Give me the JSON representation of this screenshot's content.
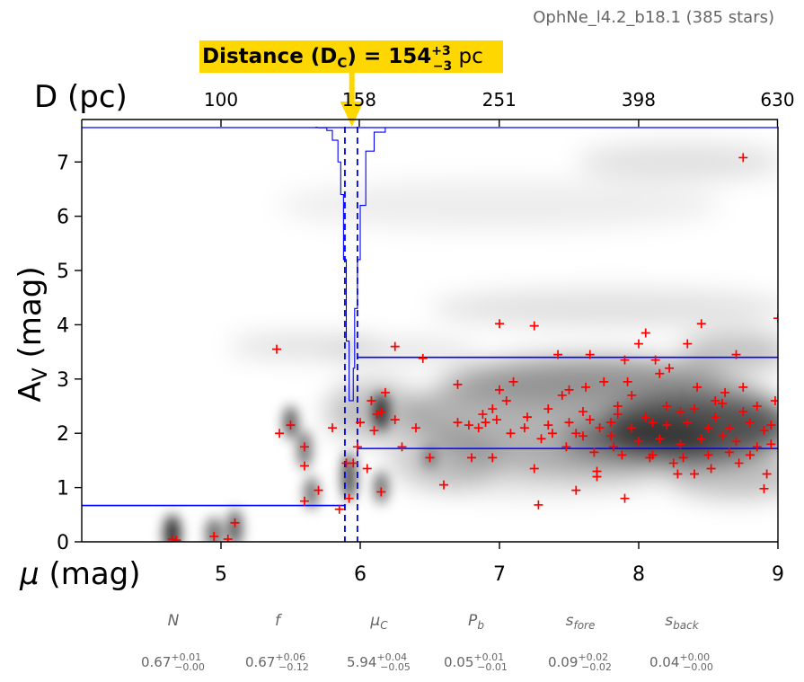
{
  "header": {
    "title": "OphNe_l4.2_b18.1 (385 stars)"
  },
  "distance_banner": {
    "label": "Distance (D",
    "sub": "C",
    "mid": ") = 154",
    "sup": "+3",
    "inf": "−3",
    "unit": " pc",
    "bg_color": "#FFD700"
  },
  "colors": {
    "points": "#ff0000",
    "lines": "#0000ff",
    "arrow": "#FFD700",
    "density": "#000000"
  },
  "chart_data": {
    "type": "scatter",
    "xlabel_main": "μ",
    "xlabel_unit": " (mag)",
    "ylabel_main": "A",
    "ylabel_sub": "V",
    "ylabel_unit": " (mag)",
    "top_axis_label": "D (pc)",
    "xlim": [
      4,
      9
    ],
    "ylim": [
      0,
      7.65
    ],
    "x_ticks": [
      "5",
      "6",
      "7",
      "8",
      "9"
    ],
    "y_ticks": [
      "0",
      "1",
      "2",
      "3",
      "4",
      "5",
      "6",
      "7"
    ],
    "top_ticks": [
      "100",
      "158",
      "251",
      "398",
      "630"
    ],
    "mu_c": 5.94,
    "mu_c_err": [
      5.89,
      5.98
    ],
    "foreground_av": 0.67,
    "background_band": [
      1.72,
      3.4
    ],
    "points": [
      [
        4.65,
        0.05
      ],
      [
        4.68,
        0.03
      ],
      [
        4.95,
        0.1
      ],
      [
        5.1,
        0.35
      ],
      [
        5.05,
        0.05
      ],
      [
        5.4,
        3.55
      ],
      [
        5.42,
        2.0
      ],
      [
        5.5,
        2.15
      ],
      [
        5.6,
        1.75
      ],
      [
        5.6,
        1.4
      ],
      [
        5.6,
        0.75
      ],
      [
        5.7,
        0.95
      ],
      [
        5.85,
        0.6
      ],
      [
        5.9,
        1.45
      ],
      [
        5.92,
        0.8
      ],
      [
        5.95,
        1.45
      ],
      [
        5.8,
        2.1
      ],
      [
        5.98,
        1.75
      ],
      [
        6.0,
        2.2
      ],
      [
        6.08,
        2.6
      ],
      [
        6.1,
        2.05
      ],
      [
        6.12,
        2.35
      ],
      [
        6.15,
        2.4
      ],
      [
        6.18,
        2.75
      ],
      [
        6.05,
        1.35
      ],
      [
        6.15,
        0.92
      ],
      [
        6.25,
        2.25
      ],
      [
        6.3,
        1.75
      ],
      [
        6.25,
        3.6
      ],
      [
        6.4,
        2.1
      ],
      [
        6.45,
        3.38
      ],
      [
        6.5,
        1.55
      ],
      [
        6.6,
        1.05
      ],
      [
        6.7,
        2.9
      ],
      [
        6.7,
        2.2
      ],
      [
        6.8,
        1.55
      ],
      [
        6.85,
        2.1
      ],
      [
        6.9,
        2.2
      ],
      [
        6.95,
        1.55
      ],
      [
        6.95,
        2.45
      ],
      [
        7.0,
        2.8
      ],
      [
        7.0,
        4.02
      ],
      [
        7.05,
        2.6
      ],
      [
        7.1,
        2.95
      ],
      [
        7.2,
        2.3
      ],
      [
        7.25,
        1.35
      ],
      [
        7.3,
        1.9
      ],
      [
        7.35,
        2.15
      ],
      [
        7.45,
        2.7
      ],
      [
        7.5,
        2.8
      ],
      [
        7.55,
        0.95
      ],
      [
        7.6,
        1.95
      ],
      [
        7.6,
        2.4
      ],
      [
        7.65,
        3.45
      ],
      [
        7.7,
        1.3
      ],
      [
        7.7,
        1.2
      ],
      [
        7.75,
        2.95
      ],
      [
        7.8,
        2.2
      ],
      [
        7.85,
        2.5
      ],
      [
        7.9,
        0.8
      ],
      [
        7.9,
        3.35
      ],
      [
        7.95,
        2.7
      ],
      [
        8.0,
        3.65
      ],
      [
        8.05,
        3.85
      ],
      [
        8.1,
        2.2
      ],
      [
        8.1,
        1.6
      ],
      [
        8.15,
        3.1
      ],
      [
        8.2,
        2.5
      ],
      [
        8.25,
        1.45
      ],
      [
        8.3,
        2.4
      ],
      [
        8.35,
        3.65
      ],
      [
        8.4,
        1.25
      ],
      [
        8.45,
        4.02
      ],
      [
        8.5,
        2.1
      ],
      [
        8.55,
        2.6
      ],
      [
        8.6,
        1.95
      ],
      [
        8.65,
        1.65
      ],
      [
        8.7,
        3.45
      ],
      [
        8.75,
        2.85
      ],
      [
        8.8,
        2.2
      ],
      [
        8.85,
        1.75
      ],
      [
        8.9,
        0.98
      ],
      [
        8.95,
        2.15
      ],
      [
        9.0,
        4.12
      ],
      [
        8.75,
        7.08
      ],
      [
        7.28,
        0.68
      ],
      [
        7.25,
        3.98
      ],
      [
        7.35,
        2.45
      ],
      [
        7.5,
        2.2
      ],
      [
        7.55,
        2.0
      ],
      [
        7.65,
        2.25
      ],
      [
        7.72,
        2.1
      ],
      [
        7.8,
        1.95
      ],
      [
        7.85,
        2.35
      ],
      [
        7.95,
        2.1
      ],
      [
        8.0,
        1.85
      ],
      [
        8.05,
        2.3
      ],
      [
        8.15,
        1.9
      ],
      [
        8.2,
        2.15
      ],
      [
        8.3,
        1.8
      ],
      [
        8.35,
        2.2
      ],
      [
        8.4,
        2.45
      ],
      [
        8.45,
        1.9
      ],
      [
        8.5,
        1.6
      ],
      [
        8.55,
        2.3
      ],
      [
        8.6,
        2.55
      ],
      [
        8.65,
        2.1
      ],
      [
        8.7,
        1.85
      ],
      [
        8.75,
        2.4
      ],
      [
        8.8,
        1.6
      ],
      [
        8.85,
        2.5
      ],
      [
        8.9,
        2.05
      ],
      [
        8.95,
        1.8
      ],
      [
        8.98,
        2.6
      ],
      [
        8.62,
        2.75
      ],
      [
        8.42,
        2.85
      ],
      [
        8.22,
        3.2
      ],
      [
        8.12,
        3.35
      ],
      [
        7.92,
        2.95
      ],
      [
        7.62,
        2.85
      ],
      [
        7.42,
        3.45
      ],
      [
        7.82,
        1.75
      ],
      [
        8.32,
        1.55
      ],
      [
        8.52,
        1.35
      ],
      [
        8.72,
        1.45
      ],
      [
        8.92,
        1.25
      ],
      [
        8.28,
        1.25
      ],
      [
        8.08,
        1.55
      ],
      [
        7.88,
        1.6
      ],
      [
        7.68,
        1.65
      ],
      [
        7.48,
        1.75
      ],
      [
        7.38,
        2.0
      ],
      [
        7.18,
        2.1
      ],
      [
        7.08,
        2.0
      ],
      [
        6.98,
        2.25
      ],
      [
        6.88,
        2.35
      ],
      [
        6.78,
        2.15
      ]
    ]
  },
  "params": [
    {
      "name": "N",
      "val": "0.67",
      "sup": "+0.01",
      "inf": "−0.00",
      "italic": false
    },
    {
      "name": "f",
      "val": "0.67",
      "sup": "+0.06",
      "inf": "−0.12",
      "italic": false
    },
    {
      "name": "μ",
      "name_sub": "C",
      "val": "5.94",
      "sup": "+0.04",
      "inf": "−0.05",
      "italic": true
    },
    {
      "name": "P",
      "name_sub": "b",
      "val": "0.05",
      "sup": "+0.01",
      "inf": "−0.01",
      "italic": true
    },
    {
      "name": "s",
      "name_sub": "fore",
      "val": "0.09",
      "sup": "+0.02",
      "inf": "−0.02",
      "italic": true
    },
    {
      "name": "s",
      "name_sub": "back",
      "val": "0.04",
      "sup": "+0.00",
      "inf": "−0.00",
      "italic": true
    }
  ]
}
